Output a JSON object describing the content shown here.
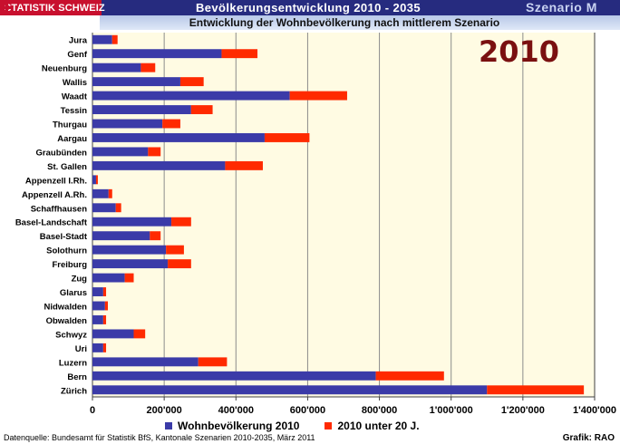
{
  "header": {
    "brand": "STATISTIK SCHWEIZ",
    "title": "Bevölkerungsentwicklung 2010 - 2035",
    "scenario": "Szenario M",
    "subtitle": "Entwicklung der Wohnbevölkerung nach mittlerem Szenario"
  },
  "year_label": "2010",
  "footer": {
    "source": "Datenquelle: Bundesamt für Statistik BfS, Kantonale Szenarien 2010-2035, März  2011",
    "credit": "Grafik: RAO"
  },
  "colors": {
    "series1": "#3b3ba8",
    "series2": "#ff2a00",
    "plot_background": "#fffbe3",
    "header": "#262b7f",
    "brand": "#c8102e"
  },
  "chart_data": {
    "type": "bar",
    "orientation": "horizontal",
    "stacked": true,
    "categories": [
      "Jura",
      "Genf",
      "Neuenburg",
      "Wallis",
      "Waadt",
      "Tessin",
      "Thurgau",
      "Aargau",
      "Graubünden",
      "St. Gallen",
      "Appenzell I.Rh.",
      "Appenzell A.Rh.",
      "Schaffhausen",
      "Basel-Landschaft",
      "Basel-Stadt",
      "Solothurn",
      "Freiburg",
      "Zug",
      "Glarus",
      "Nidwalden",
      "Obwalden",
      "Schwyz",
      "Uri",
      "Luzern",
      "Bern",
      "Zürich"
    ],
    "series": [
      {
        "name": "Wohnbevölkerung 2010",
        "values": [
          55000,
          360000,
          135000,
          245000,
          550000,
          275000,
          195000,
          480000,
          155000,
          370000,
          10000,
          45000,
          65000,
          220000,
          160000,
          205000,
          210000,
          90000,
          30000,
          35000,
          30000,
          115000,
          30000,
          295000,
          790000,
          1100000
        ]
      },
      {
        "name": "2010 unter 20 J.",
        "values": [
          15000,
          100000,
          40000,
          65000,
          160000,
          60000,
          50000,
          125000,
          35000,
          105000,
          5000,
          10000,
          15000,
          55000,
          30000,
          50000,
          65000,
          25000,
          8000,
          8000,
          8000,
          32000,
          8000,
          80000,
          190000,
          270000
        ]
      }
    ],
    "xlim": [
      0,
      1400000
    ],
    "xticks": [
      0,
      200000,
      400000,
      600000,
      800000,
      1000000,
      1200000,
      1400000
    ],
    "xtick_labels": [
      "0",
      "200'000",
      "400'000",
      "600'000",
      "800'000",
      "1'000'000",
      "1'200'000",
      "1'400'000"
    ],
    "grid": "vertical",
    "legend": "bottom",
    "title": "Entwicklung der Wohnbevölkerung nach mittlerem Szenario"
  }
}
